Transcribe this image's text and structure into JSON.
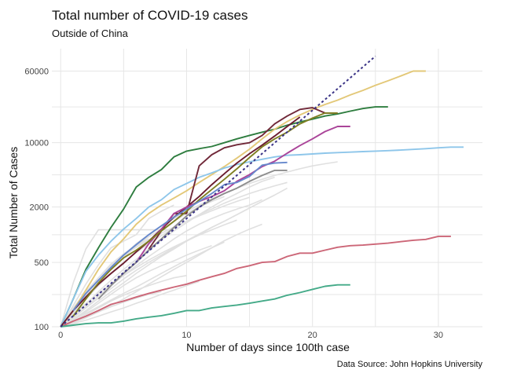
{
  "chart_data": {
    "type": "line",
    "title": "Total number of COVID-19 cases",
    "subtitle": "Outside of China",
    "xlabel": "Number of days since 100th case",
    "ylabel": "Total Number of Cases",
    "caption": "Data Source: John Hopkins University",
    "x_scale": "linear",
    "y_scale": "log",
    "xlim": [
      -0.7,
      33.5
    ],
    "ylim": [
      100,
      105000
    ],
    "x_ticks": [
      0,
      10,
      20,
      30
    ],
    "x_tick_labels": [
      "0",
      "10",
      "20",
      "30"
    ],
    "y_ticks": [
      100,
      500,
      2000,
      10000,
      60000
    ],
    "y_tick_labels": [
      "100",
      "500",
      "2000",
      "10000",
      "60000"
    ],
    "grid": true,
    "legend": "none",
    "reference_line": {
      "style": "dotted",
      "color": "#3b3486",
      "x": [
        0,
        25
      ],
      "y": [
        100,
        87000
      ]
    },
    "background_series_color": "#e0e0e0",
    "background_series": [
      {
        "x": [
          0,
          1,
          2,
          3,
          4,
          5,
          6,
          7,
          8,
          9
        ],
        "y": [
          100,
          170,
          290,
          470,
          720,
          850,
          1000,
          1500,
          1800,
          2100
        ]
      },
      {
        "x": [
          0,
          1,
          2,
          3,
          4,
          5,
          6,
          7,
          8,
          9,
          10,
          11,
          12,
          13
        ],
        "y": [
          100,
          145,
          210,
          300,
          420,
          560,
          760,
          950,
          1150,
          1400,
          1700,
          2000,
          2300,
          2600
        ]
      },
      {
        "x": [
          0,
          1,
          2,
          3,
          4,
          5,
          6,
          7,
          8,
          9,
          10,
          11,
          12,
          13,
          14,
          15,
          16,
          17
        ],
        "y": [
          100,
          130,
          175,
          240,
          320,
          420,
          540,
          700,
          880,
          1100,
          1350,
          1650,
          2000,
          2400,
          2800,
          3300,
          3800,
          4200
        ]
      },
      {
        "x": [
          0,
          1,
          2,
          3,
          4,
          5,
          6,
          7,
          8,
          9,
          10,
          11,
          12,
          13,
          14,
          15,
          16
        ],
        "y": [
          100,
          125,
          165,
          215,
          280,
          360,
          460,
          580,
          720,
          900,
          1100,
          1300,
          1500,
          1700,
          1900,
          2100,
          2400
        ]
      },
      {
        "x": [
          0,
          1,
          2,
          3,
          4,
          5,
          6,
          7,
          8,
          9,
          10,
          11,
          12,
          13,
          14,
          15,
          16,
          17,
          18
        ],
        "y": [
          100,
          120,
          150,
          190,
          240,
          300,
          380,
          470,
          580,
          700,
          850,
          1000,
          1200,
          1400,
          1650,
          1950,
          2300,
          2700,
          3200
        ]
      },
      {
        "x": [
          0,
          1,
          2,
          3,
          4,
          5,
          6,
          7,
          8,
          9,
          10,
          11,
          12
        ],
        "y": [
          100,
          118,
          145,
          180,
          225,
          280,
          340,
          400,
          460,
          520,
          600,
          680,
          760
        ]
      },
      {
        "x": [
          0,
          1,
          2,
          3,
          4,
          5,
          6,
          7,
          8,
          9,
          10
        ],
        "y": [
          100,
          115,
          135,
          160,
          190,
          220,
          250,
          280,
          310,
          340,
          360
        ]
      },
      {
        "x": [
          0,
          1,
          2,
          3,
          4,
          5,
          6,
          7,
          8
        ],
        "y": [
          100,
          112,
          128,
          145,
          165,
          185,
          205,
          225,
          240
        ]
      },
      {
        "x": [
          0,
          1,
          2,
          3,
          4,
          5,
          6,
          7,
          8,
          9,
          10,
          11,
          12,
          13,
          14,
          15,
          16
        ],
        "y": [
          100,
          110,
          125,
          145,
          170,
          200,
          240,
          290,
          350,
          420,
          500,
          600,
          720,
          860,
          1000,
          1150,
          1300
        ]
      },
      {
        "x": [
          0,
          1,
          2,
          3,
          4,
          5,
          6,
          7,
          8,
          9,
          10,
          11,
          12,
          13,
          14,
          15,
          16,
          17,
          18
        ],
        "y": [
          100,
          140,
          200,
          280,
          380,
          500,
          640,
          800,
          980,
          1180,
          1400,
          1650,
          1900,
          2200,
          2500,
          2800,
          3100,
          3400,
          3700
        ]
      },
      {
        "x": [
          0,
          1,
          2,
          3,
          4,
          5,
          6,
          7
        ],
        "y": [
          100,
          150,
          230,
          340,
          480,
          620,
          760,
          900
        ]
      },
      {
        "x": [
          0,
          1,
          2,
          3,
          4,
          5,
          6,
          7,
          8,
          9,
          10,
          11,
          12,
          13,
          14
        ],
        "y": [
          100,
          135,
          180,
          230,
          290,
          360,
          440,
          530,
          630,
          740,
          860,
          990,
          1130,
          1280,
          1440
        ]
      },
      {
        "x": [
          0,
          1,
          2,
          3,
          4,
          5,
          6,
          7,
          8,
          9,
          10,
          11
        ],
        "y": [
          100,
          108,
          118,
          130,
          145,
          160,
          180,
          200,
          225,
          250,
          280,
          310
        ]
      },
      {
        "x": [
          0,
          1,
          2,
          3,
          4,
          5,
          6,
          7,
          8,
          9,
          10,
          11,
          12,
          13,
          14,
          15,
          16,
          17
        ],
        "y": [
          100,
          125,
          160,
          205,
          260,
          330,
          410,
          500,
          600,
          720,
          860,
          1020,
          1200,
          1400,
          1650,
          1950,
          2300,
          2700
        ]
      },
      {
        "x": [
          0,
          1,
          2,
          3,
          4,
          5,
          6,
          7,
          8,
          9
        ],
        "y": [
          100,
          300,
          700,
          1130,
          1130,
          1130,
          1130,
          1130,
          1130,
          1130
        ]
      },
      {
        "x": [
          0,
          1,
          2,
          3,
          4,
          5,
          6,
          7,
          8,
          9,
          10,
          11,
          12,
          13,
          14,
          15
        ],
        "y": [
          100,
          160,
          240,
          340,
          460,
          590,
          730,
          880,
          1040,
          1210,
          1400,
          1600,
          1820,
          2060,
          2300,
          2550
        ]
      },
      {
        "x": [
          0,
          1,
          2,
          3,
          4,
          5,
          6,
          7,
          8,
          9,
          10,
          11,
          12,
          13
        ],
        "y": [
          100,
          120,
          140,
          165,
          195,
          230,
          270,
          320,
          380,
          450,
          530,
          620,
          720,
          830
        ]
      },
      {
        "x": [
          0,
          1,
          2,
          3,
          4,
          5,
          6,
          7,
          8,
          9,
          10,
          11,
          12,
          13,
          14,
          15,
          16,
          17,
          18,
          19,
          20,
          21,
          22
        ],
        "y": [
          100,
          150,
          220,
          320,
          440,
          600,
          800,
          1000,
          1250,
          1500,
          1800,
          2100,
          2450,
          2800,
          3200,
          3600,
          4000,
          4400,
          4800,
          5200,
          5600,
          5900,
          6200
        ]
      }
    ],
    "series": [
      {
        "color": "#2e7d3f",
        "x": [
          0,
          1,
          2,
          3,
          4,
          5,
          6,
          7,
          8,
          9,
          10,
          11,
          12,
          13,
          14,
          15,
          16,
          17,
          18,
          19,
          20,
          21,
          22,
          23,
          24,
          25,
          26
        ],
        "y": [
          100,
          200,
          420,
          720,
          1200,
          1900,
          3300,
          4200,
          5100,
          7000,
          8100,
          8600,
          9100,
          10000,
          11000,
          12000,
          13000,
          14000,
          15500,
          16800,
          18000,
          19500,
          20500,
          22000,
          23500,
          24500,
          24500
        ]
      },
      {
        "color": "#e3c878",
        "x": [
          0,
          1,
          2,
          3,
          4,
          5,
          6,
          7,
          8,
          9,
          10,
          11,
          12,
          13,
          14,
          15,
          16,
          17,
          18,
          19,
          20,
          21,
          22,
          23,
          24,
          25,
          26,
          27,
          28,
          29
        ],
        "y": [
          100,
          150,
          250,
          420,
          650,
          900,
          1300,
          1700,
          2100,
          2500,
          3000,
          3700,
          4500,
          5500,
          6800,
          8500,
          11000,
          14000,
          17000,
          20000,
          23000,
          26000,
          29000,
          33000,
          37000,
          42000,
          47000,
          53000,
          60000,
          60000
        ]
      },
      {
        "color": "#8ec6ea",
        "x": [
          0,
          1,
          2,
          3,
          4,
          5,
          6,
          7,
          8,
          9,
          10,
          11,
          12,
          13,
          14,
          15,
          16,
          17,
          18,
          19,
          20,
          21,
          22,
          23,
          24,
          25,
          26,
          27,
          28,
          29,
          30,
          31,
          32
        ],
        "y": [
          100,
          200,
          400,
          600,
          850,
          1150,
          1500,
          2000,
          2400,
          3100,
          3600,
          4200,
          4700,
          5300,
          5800,
          6200,
          6600,
          7000,
          7300,
          7400,
          7550,
          7700,
          7800,
          7900,
          8000,
          8100,
          8200,
          8300,
          8450,
          8600,
          8800,
          8950,
          8950
        ]
      },
      {
        "color": "#cc6677",
        "x": [
          0,
          1,
          2,
          3,
          4,
          5,
          6,
          7,
          8,
          9,
          10,
          11,
          12,
          13,
          14,
          15,
          16,
          17,
          18,
          19,
          20,
          21,
          22,
          23,
          24,
          25,
          26,
          27,
          28,
          29,
          30,
          31
        ],
        "y": [
          100,
          115,
          130,
          150,
          175,
          190,
          210,
          230,
          250,
          270,
          290,
          320,
          350,
          380,
          430,
          460,
          500,
          510,
          580,
          630,
          630,
          680,
          730,
          760,
          770,
          790,
          810,
          840,
          870,
          890,
          960,
          960
        ]
      },
      {
        "color": "#44aa88",
        "x": [
          0,
          1,
          2,
          3,
          4,
          5,
          6,
          7,
          8,
          9,
          10,
          11,
          12,
          13,
          14,
          15,
          16,
          17,
          18,
          19,
          20,
          21,
          22,
          23
        ],
        "y": [
          100,
          104,
          108,
          110,
          110,
          115,
          122,
          127,
          132,
          140,
          150,
          150,
          160,
          166,
          172,
          180,
          190,
          200,
          220,
          235,
          255,
          275,
          285,
          285
        ]
      },
      {
        "color": "#6a1c2e",
        "x": [
          0,
          1,
          2,
          3,
          4,
          5,
          6,
          7,
          8,
          9,
          10,
          11,
          12,
          13,
          14,
          15,
          16,
          17,
          18,
          19
        ],
        "y": [
          100,
          150,
          210,
          290,
          380,
          490,
          650,
          850,
          1150,
          1550,
          2000,
          2600,
          3500,
          4600,
          6000,
          7600,
          9400,
          11800,
          15000,
          19000
        ]
      },
      {
        "color": "#702838",
        "x": [
          7,
          8,
          9,
          10,
          11,
          12,
          13,
          14,
          15,
          16,
          17,
          18,
          19,
          20,
          21,
          22
        ],
        "y": [
          700,
          1100,
          1700,
          1700,
          5600,
          7400,
          8800,
          9500,
          10000,
          12000,
          16000,
          19500,
          23000,
          24000,
          21000,
          21000
        ]
      },
      {
        "color": "#aa4499",
        "x": [
          6,
          7,
          8,
          9,
          10,
          11,
          12,
          13,
          14,
          15,
          16,
          17,
          18,
          19,
          20,
          21,
          22,
          23
        ],
        "y": [
          500,
          800,
          1150,
          1700,
          2000,
          2300,
          2600,
          3000,
          3800,
          4500,
          5500,
          6300,
          7700,
          9300,
          11000,
          13200,
          15000,
          15000
        ]
      },
      {
        "color": "#7f7f22",
        "x": [
          1,
          2,
          3,
          4,
          5,
          6,
          7,
          8,
          9,
          10,
          11,
          12,
          13,
          14,
          15,
          16,
          17,
          18,
          19,
          20,
          21,
          22
        ],
        "y": [
          130,
          200,
          300,
          420,
          560,
          680,
          850,
          1100,
          1400,
          1800,
          2400,
          3100,
          4000,
          5200,
          6900,
          9000,
          11000,
          13000,
          16000,
          18500,
          21000,
          21000
        ]
      },
      {
        "color": "#8d8d8d",
        "x": [
          3,
          4,
          5,
          6,
          7,
          8,
          9,
          10,
          11,
          12,
          13,
          14,
          15,
          16,
          17,
          18
        ],
        "y": [
          200,
          280,
          380,
          500,
          680,
          900,
          1200,
          1600,
          2000,
          2400,
          2800,
          3200,
          3800,
          4400,
          5000,
          5000
        ]
      },
      {
        "color": "#6688cc",
        "x": [
          1,
          2,
          3,
          4,
          5,
          6,
          7,
          8,
          9,
          10,
          11,
          12,
          13,
          14,
          15,
          16,
          17,
          18
        ],
        "y": [
          150,
          230,
          320,
          440,
          600,
          780,
          1000,
          1250,
          1550,
          1900,
          2300,
          2800,
          3500,
          3700,
          4300,
          5700,
          6000,
          6100
        ]
      }
    ]
  }
}
